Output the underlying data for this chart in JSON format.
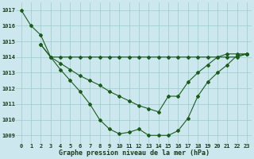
{
  "title": "Graphe pression niveau de la mer (hPa)",
  "background_color": "#cce8ee",
  "grid_color": "#99cccc",
  "line_color": "#1a5c1a",
  "line1_x": [
    0,
    1,
    2,
    3,
    4,
    5,
    6,
    7,
    8,
    9,
    10,
    11,
    12,
    13,
    14,
    15,
    16,
    17,
    18,
    19,
    20,
    21,
    22,
    23
  ],
  "line1_y": [
    1017.0,
    1016.0,
    1015.4,
    1014.0,
    1013.2,
    1012.5,
    1011.8,
    1011.0,
    1010.0,
    1009.4,
    1009.1,
    1009.2,
    1009.4,
    1009.0,
    1009.0,
    1009.0,
    1009.3,
    1010.1,
    1011.5,
    1012.4,
    1013.0,
    1013.5,
    1014.1,
    1014.2
  ],
  "line2_x": [
    2,
    3,
    4,
    5,
    6,
    7,
    8,
    9,
    10,
    11,
    12,
    13,
    14,
    15,
    16,
    17,
    18,
    19,
    20,
    21,
    22,
    23
  ],
  "line2_y": [
    1014.8,
    1014.0,
    1014.0,
    1014.0,
    1014.0,
    1014.0,
    1014.0,
    1014.0,
    1014.0,
    1014.0,
    1014.0,
    1014.0,
    1014.0,
    1014.0,
    1014.0,
    1014.0,
    1014.0,
    1014.0,
    1014.0,
    1014.0,
    1014.0,
    1014.2
  ],
  "line3_x": [
    2,
    3,
    4,
    5,
    6,
    7,
    8,
    9,
    10,
    11,
    12,
    13,
    14,
    15,
    16,
    17,
    18,
    19,
    20,
    21,
    22,
    23
  ],
  "line3_y": [
    1014.8,
    1014.0,
    1013.6,
    1013.2,
    1012.8,
    1012.5,
    1012.2,
    1011.8,
    1011.5,
    1011.2,
    1010.9,
    1010.7,
    1010.5,
    1011.5,
    1011.5,
    1012.4,
    1013.0,
    1013.5,
    1014.0,
    1014.2,
    1014.2,
    1014.2
  ],
  "ylim": [
    1008.5,
    1017.5
  ],
  "yticks": [
    1009,
    1010,
    1011,
    1012,
    1013,
    1014,
    1015,
    1016,
    1017
  ],
  "xticks": [
    0,
    1,
    2,
    3,
    4,
    5,
    6,
    7,
    8,
    9,
    10,
    11,
    12,
    13,
    14,
    15,
    16,
    17,
    18,
    19,
    20,
    21,
    22,
    23
  ],
  "markersize": 2.0,
  "linewidth": 0.8,
  "xlabel_color": "#1a3a1a",
  "tick_color": "#1a3a1a",
  "tick_fontsize": 5.0,
  "xlabel_fontsize": 6.0
}
